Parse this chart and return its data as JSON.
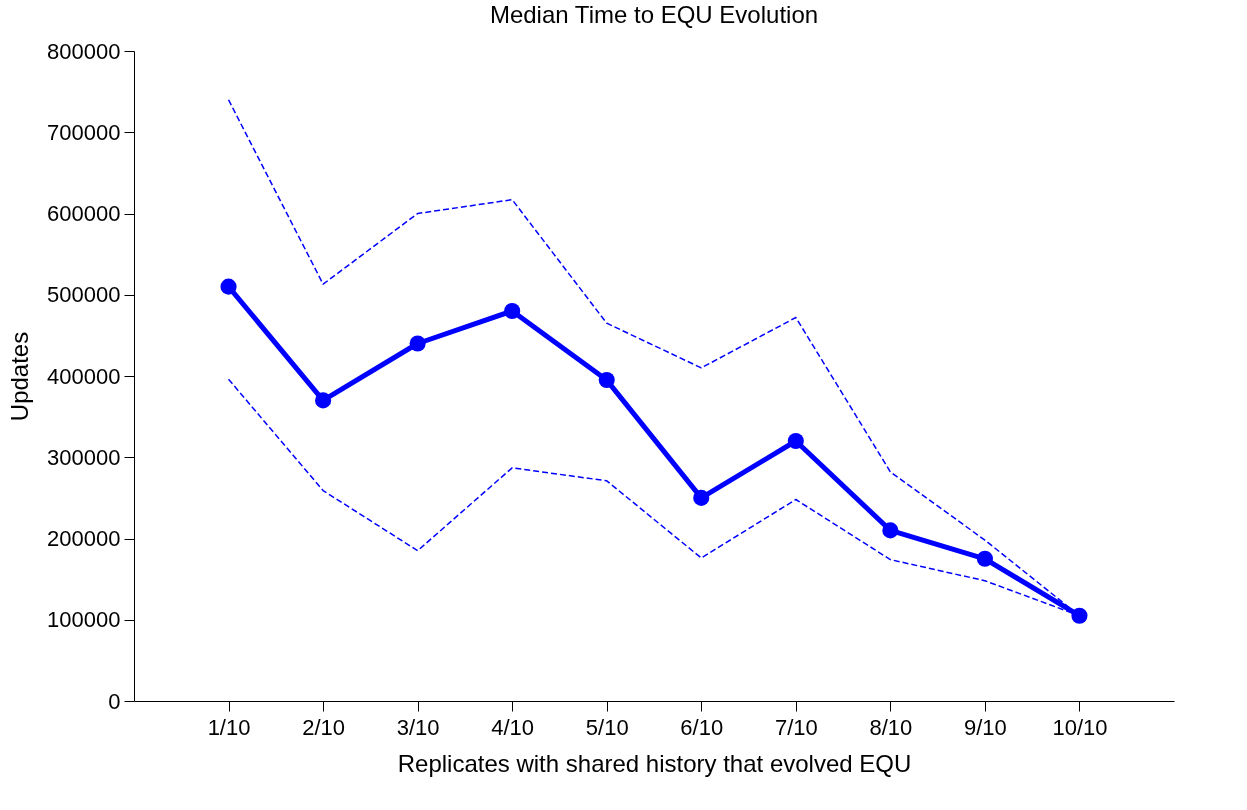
{
  "chart_data": {
    "type": "line",
    "title": "Median Time to EQU Evolution",
    "xlabel": "Replicates with shared history that evolved EQU",
    "ylabel": "Updates",
    "categories": [
      "1/10",
      "2/10",
      "3/10",
      "4/10",
      "5/10",
      "6/10",
      "7/10",
      "8/10",
      "9/10",
      "10/10"
    ],
    "series": [
      {
        "color": "#0000ff",
        "marker": "circle",
        "line_style": "solid",
        "values": [
          510000,
          370000,
          440000,
          480000,
          395000,
          250000,
          320000,
          210000,
          175000,
          105000
        ]
      },
      {
        "color": "#0000ff",
        "marker": "none",
        "line_style": "dashed",
        "values": [
          740000,
          513000,
          600000,
          617000,
          465000,
          410000,
          472000,
          282000,
          198000,
          105000
        ]
      },
      {
        "color": "#0000ff",
        "marker": "none",
        "line_style": "dashed",
        "values": [
          396000,
          259000,
          185000,
          287000,
          271000,
          176000,
          248000,
          174000,
          148000,
          105000
        ]
      }
    ],
    "ylim": [
      0,
      800000
    ],
    "yticks": [
      0,
      100000,
      200000,
      300000,
      400000,
      500000,
      600000,
      700000,
      800000
    ],
    "grid": false
  }
}
